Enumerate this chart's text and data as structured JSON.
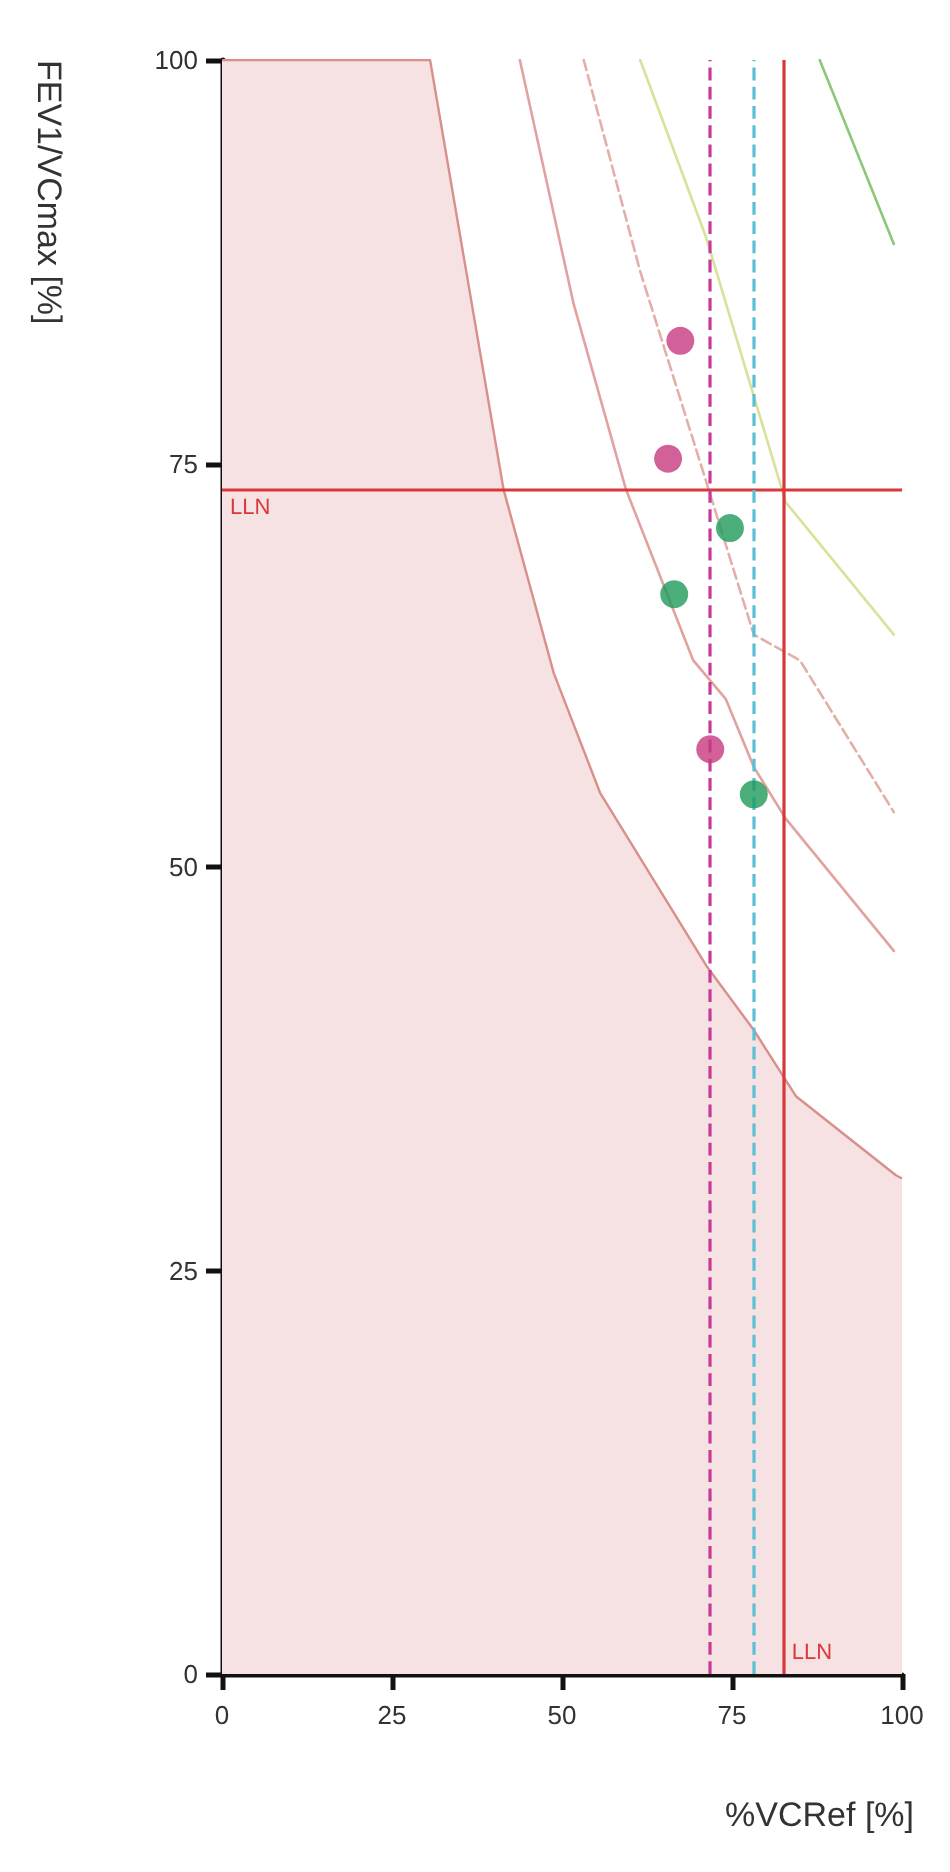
{
  "chart_data": {
    "type": "scatter",
    "xlabel": "%VCRef [%]",
    "ylabel": "FEV1/VCmax [%]",
    "xlim": [
      0,
      100
    ],
    "ylim": [
      0,
      100
    ],
    "xticks": [
      0,
      25,
      50,
      75,
      100
    ],
    "yticks": [
      0,
      25,
      50,
      75,
      100
    ],
    "grid": false,
    "series": [
      {
        "type": "area",
        "color": "#f6e2e2",
        "x": [
          0,
          30.6,
          41.4,
          48.8,
          55.6,
          71.2,
          78.2,
          84.4,
          99.1,
          100
        ],
        "values": [
          100,
          100,
          73.4,
          62,
          54.6,
          43.9,
          39.9,
          35.8,
          30.9,
          30.7
        ]
      },
      {
        "type": "line",
        "color": "#e2a2a0",
        "line_style": "solid",
        "marker": "none",
        "x": [
          43.8,
          51.7,
          59.4,
          69.3,
          74.1,
          78.2,
          82.9,
          98.8
        ],
        "values": [
          100,
          84.9,
          73.4,
          62.8,
          60.4,
          56.2,
          53,
          44.8
        ]
      },
      {
        "type": "line",
        "color": "#e3b0a8",
        "line_style": "dashed",
        "marker": "none",
        "x": [
          53.2,
          61.5,
          70.3,
          78.2,
          85,
          98.8
        ],
        "values": [
          100,
          86.9,
          75.1,
          64.4,
          62.8,
          53.4
        ]
      },
      {
        "type": "line",
        "color": "#d8e29a",
        "line_style": "solid",
        "marker": "none",
        "x": [
          61.5,
          71.2,
          82.9,
          98.8
        ],
        "values": [
          100,
          89,
          72.6,
          64.4
        ]
      },
      {
        "type": "line",
        "color": "#8cc878",
        "line_style": "solid",
        "marker": "none",
        "x": [
          87.9,
          98.8
        ],
        "values": [
          100,
          88.6
        ]
      },
      {
        "color": "#c8397f",
        "marker": "circle",
        "x": [
          67.4,
          65.6,
          71.8
        ],
        "values": [
          82.6,
          75.3,
          57.3
        ]
      },
      {
        "color": "#1f9a5a",
        "marker": "circle",
        "x": [
          74.7,
          66.5,
          78.2
        ],
        "values": [
          71,
          66.9,
          54.5
        ]
      }
    ],
    "ref_lines": [
      {
        "axis": "y",
        "value": 73.4,
        "label": "LLN",
        "color": "#d9383a"
      },
      {
        "axis": "x",
        "value": 82.6,
        "label": "LLN",
        "color": "#d9383a"
      },
      {
        "axis": "x",
        "value": 71.8,
        "color": "#c8399a",
        "line_style": "dashed"
      },
      {
        "axis": "x",
        "value": 78.2,
        "color": "#5bbfd6",
        "line_style": "dashed"
      }
    ]
  }
}
